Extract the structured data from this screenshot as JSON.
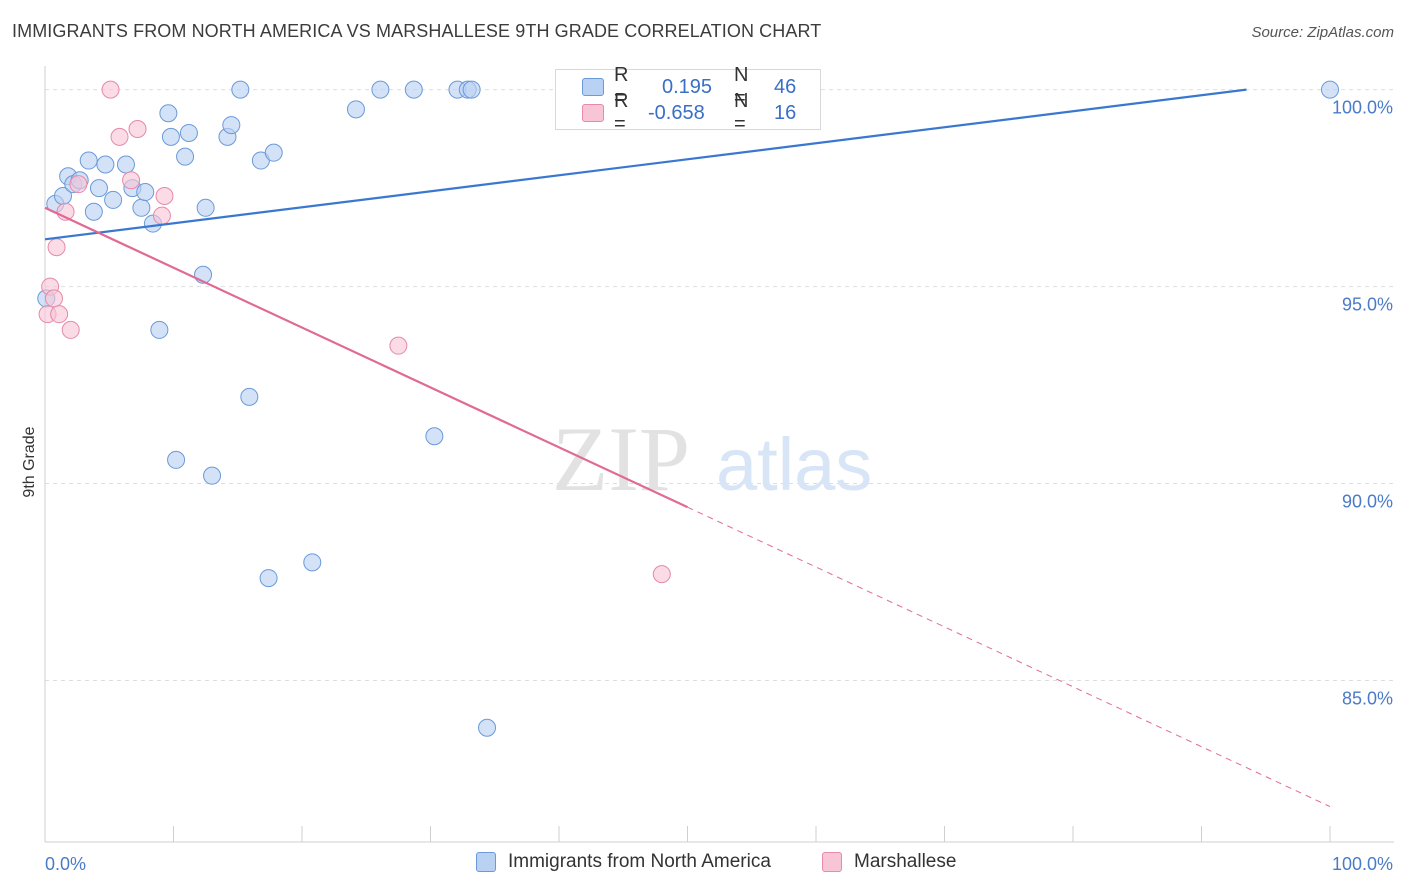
{
  "title": "IMMIGRANTS FROM NORTH AMERICA VS MARSHALLESE 9TH GRADE CORRELATION CHART",
  "source": "Source: ZipAtlas.com",
  "watermark": {
    "zip": "ZIP",
    "atlas": "atlas"
  },
  "stats": {
    "r_label": "R =",
    "n_label": "N =",
    "rows": [
      {
        "r": "0.195",
        "n": "46"
      },
      {
        "r": "-0.658",
        "n": "16"
      }
    ]
  },
  "legend": [
    {
      "label": "Immigrants from North America"
    },
    {
      "label": "Marshallese"
    }
  ],
  "colors": {
    "blue_fill": "#b9d1f3",
    "blue_stroke": "#6a9ad8",
    "blue_line": "#3a78d0",
    "pink_fill": "#f7c5d6",
    "pink_stroke": "#e58aa8",
    "pink_line": "#e06a95",
    "tick_text": "#4a7bc8",
    "grid": "#dedede"
  },
  "chart_data": {
    "type": "scatter",
    "xlabel": "",
    "ylabel": "9th Grade",
    "xlim": [
      0,
      100
    ],
    "ylim": [
      80.9,
      100.6
    ],
    "x_tick_labels": [
      "0.0%",
      "100.0%"
    ],
    "y_ticks": [
      85,
      90,
      95,
      100
    ],
    "y_tick_labels": [
      "85.0%",
      "90.0%",
      "95.0%",
      "100.0%"
    ],
    "grid": true,
    "series": [
      {
        "name": "Immigrants from North America",
        "color": "#6a9ad8",
        "points": [
          [
            0.1,
            94.7
          ],
          [
            0.8,
            97.1
          ],
          [
            1.4,
            97.3
          ],
          [
            1.8,
            97.8
          ],
          [
            2.2,
            97.6
          ],
          [
            2.7,
            97.7
          ],
          [
            3.4,
            98.2
          ],
          [
            3.8,
            96.9
          ],
          [
            4.2,
            97.5
          ],
          [
            4.7,
            98.1
          ],
          [
            5.3,
            97.2
          ],
          [
            6.3,
            98.1
          ],
          [
            6.8,
            97.5
          ],
          [
            7.5,
            97.0
          ],
          [
            7.8,
            97.4
          ],
          [
            8.4,
            96.6
          ],
          [
            8.9,
            93.9
          ],
          [
            9.6,
            99.4
          ],
          [
            9.8,
            98.8
          ],
          [
            10.2,
            90.6
          ],
          [
            10.9,
            98.3
          ],
          [
            11.2,
            98.9
          ],
          [
            12.3,
            95.3
          ],
          [
            12.5,
            97.0
          ],
          [
            13.0,
            90.2
          ],
          [
            14.2,
            98.8
          ],
          [
            14.5,
            99.1
          ],
          [
            15.2,
            100.0
          ],
          [
            15.9,
            92.2
          ],
          [
            16.8,
            98.2
          ],
          [
            17.4,
            87.6
          ],
          [
            17.8,
            98.4
          ],
          [
            20.8,
            88.0
          ],
          [
            24.2,
            99.5
          ],
          [
            26.1,
            100.0
          ],
          [
            28.7,
            100.0
          ],
          [
            30.3,
            91.2
          ],
          [
            32.1,
            100.0
          ],
          [
            32.9,
            100.0
          ],
          [
            33.2,
            100.0
          ],
          [
            34.4,
            83.8
          ],
          [
            40.4,
            100.0
          ],
          [
            41.2,
            100.0
          ],
          [
            47.6,
            100.0
          ],
          [
            50.4,
            100.0
          ],
          [
            100.0,
            100.0
          ]
        ]
      },
      {
        "name": "Marshallese",
        "color": "#e58aa8",
        "points": [
          [
            0.2,
            94.3
          ],
          [
            0.4,
            95.0
          ],
          [
            0.7,
            94.7
          ],
          [
            0.9,
            96.0
          ],
          [
            1.1,
            94.3
          ],
          [
            1.6,
            96.9
          ],
          [
            2.0,
            93.9
          ],
          [
            2.6,
            97.6
          ],
          [
            5.1,
            100.0
          ],
          [
            5.8,
            98.8
          ],
          [
            6.7,
            97.7
          ],
          [
            7.2,
            99.0
          ],
          [
            9.1,
            96.8
          ],
          [
            9.3,
            97.3
          ],
          [
            27.5,
            93.5
          ],
          [
            48.0,
            87.7
          ]
        ]
      }
    ],
    "trend_lines": [
      {
        "series": "Immigrants from North America",
        "x": [
          0,
          93.5
        ],
        "y": [
          96.2,
          100.0
        ],
        "style": "solid"
      },
      {
        "series": "Marshallese",
        "x": [
          0,
          50
        ],
        "y": [
          97.0,
          89.4
        ],
        "style": "solid"
      },
      {
        "series": "Marshallese",
        "x": [
          50,
          100
        ],
        "y": [
          89.4,
          81.8
        ],
        "style": "dashed"
      }
    ]
  }
}
